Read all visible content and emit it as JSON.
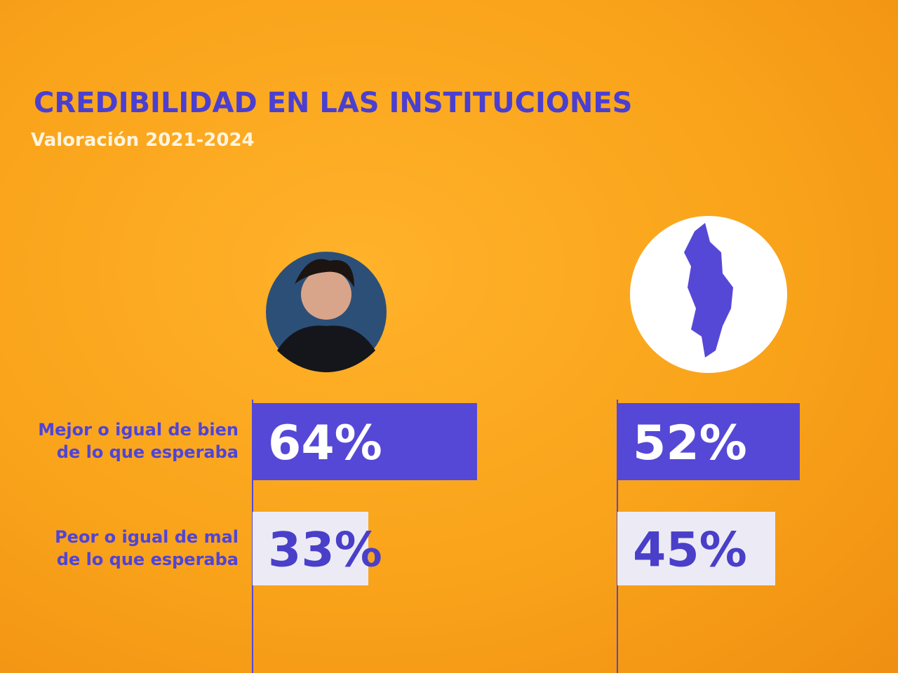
{
  "chart_data": {
    "type": "bar",
    "title": "CREDIBILIDAD EN LAS INSTITUCIONES",
    "subtitle": "Valoración 2021-2024",
    "categories": [
      "Mejor o igual de bien de lo que esperaba",
      "Peor o igual de mal de lo que esperaba"
    ],
    "category_colors": [
      "#5548d6",
      "#ecebf5"
    ],
    "label_colors": [
      "#ffffff",
      "#4a3fc8"
    ],
    "series": [
      {
        "values": [
          64,
          33
        ],
        "value_labels": [
          "64%",
          "33%"
        ]
      },
      {
        "values": [
          52,
          45
        ],
        "value_labels": [
          "52%",
          "45%"
        ]
      }
    ]
  }
}
